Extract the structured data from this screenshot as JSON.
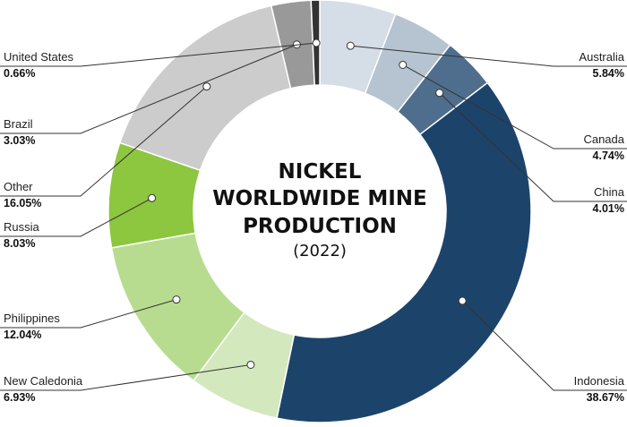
{
  "chart_data": {
    "type": "pie",
    "title_lines": [
      "NICKEL",
      "WORLDWIDE MINE",
      "PRODUCTION"
    ],
    "subtitle": "(2022)",
    "slices": [
      {
        "label": "Australia",
        "value": 5.84,
        "display": "5.84%",
        "color": "#d5dde6"
      },
      {
        "label": "Canada",
        "value": 4.74,
        "display": "4.74%",
        "color": "#b6c3d0"
      },
      {
        "label": "China",
        "value": 4.01,
        "display": "4.01%",
        "color": "#4f6e8d"
      },
      {
        "label": "Indonesia",
        "value": 38.67,
        "display": "38.67%",
        "color": "#1c446b"
      },
      {
        "label": "New Caledonia",
        "value": 6.93,
        "display": "6.93%",
        "color": "#d3e8bd"
      },
      {
        "label": "Philippines",
        "value": 12.04,
        "display": "12.04%",
        "color": "#b7dc8f"
      },
      {
        "label": "Russia",
        "value": 8.03,
        "display": "8.03%",
        "color": "#8dc63f"
      },
      {
        "label": "Other",
        "value": 16.05,
        "display": "16.05%",
        "color": "#cccccc"
      },
      {
        "label": "Brazil",
        "value": 3.03,
        "display": "3.03%",
        "color": "#999999"
      },
      {
        "label": "United States",
        "value": 0.66,
        "display": "0.66%",
        "color": "#333333"
      }
    ]
  }
}
